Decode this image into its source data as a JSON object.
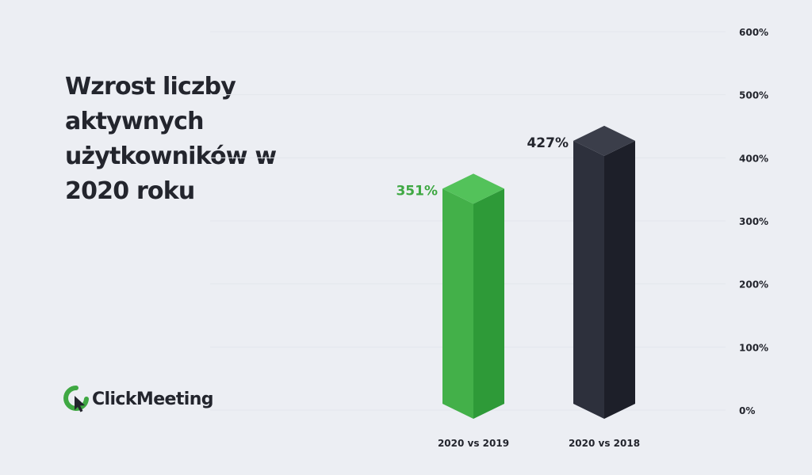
{
  "title": "Wzrost liczby aktywnych użytkowników w 2020 roku",
  "brand": {
    "logo_text": "ClickMeeting",
    "logo_icon": "clickmeeting-logo-icon",
    "accent": "#3fa843"
  },
  "chart_data": {
    "type": "bar",
    "categories": [
      "2020 vs 2019",
      "2020 vs 2018"
    ],
    "values": [
      351,
      427
    ],
    "data_labels": [
      "351%",
      "427%"
    ],
    "colors": [
      "#3fa843",
      "#2b2e3a"
    ],
    "label_colors": [
      "#3fa843",
      "#23252d"
    ],
    "ylim": [
      0,
      600
    ],
    "yticks": [
      0,
      100,
      200,
      300,
      400,
      500,
      600
    ],
    "ytick_labels": [
      "0%",
      "100%",
      "200%",
      "300%",
      "400%",
      "500%",
      "600%"
    ],
    "yaxis_position": "right",
    "grid": true,
    "style": "3d-prism"
  }
}
